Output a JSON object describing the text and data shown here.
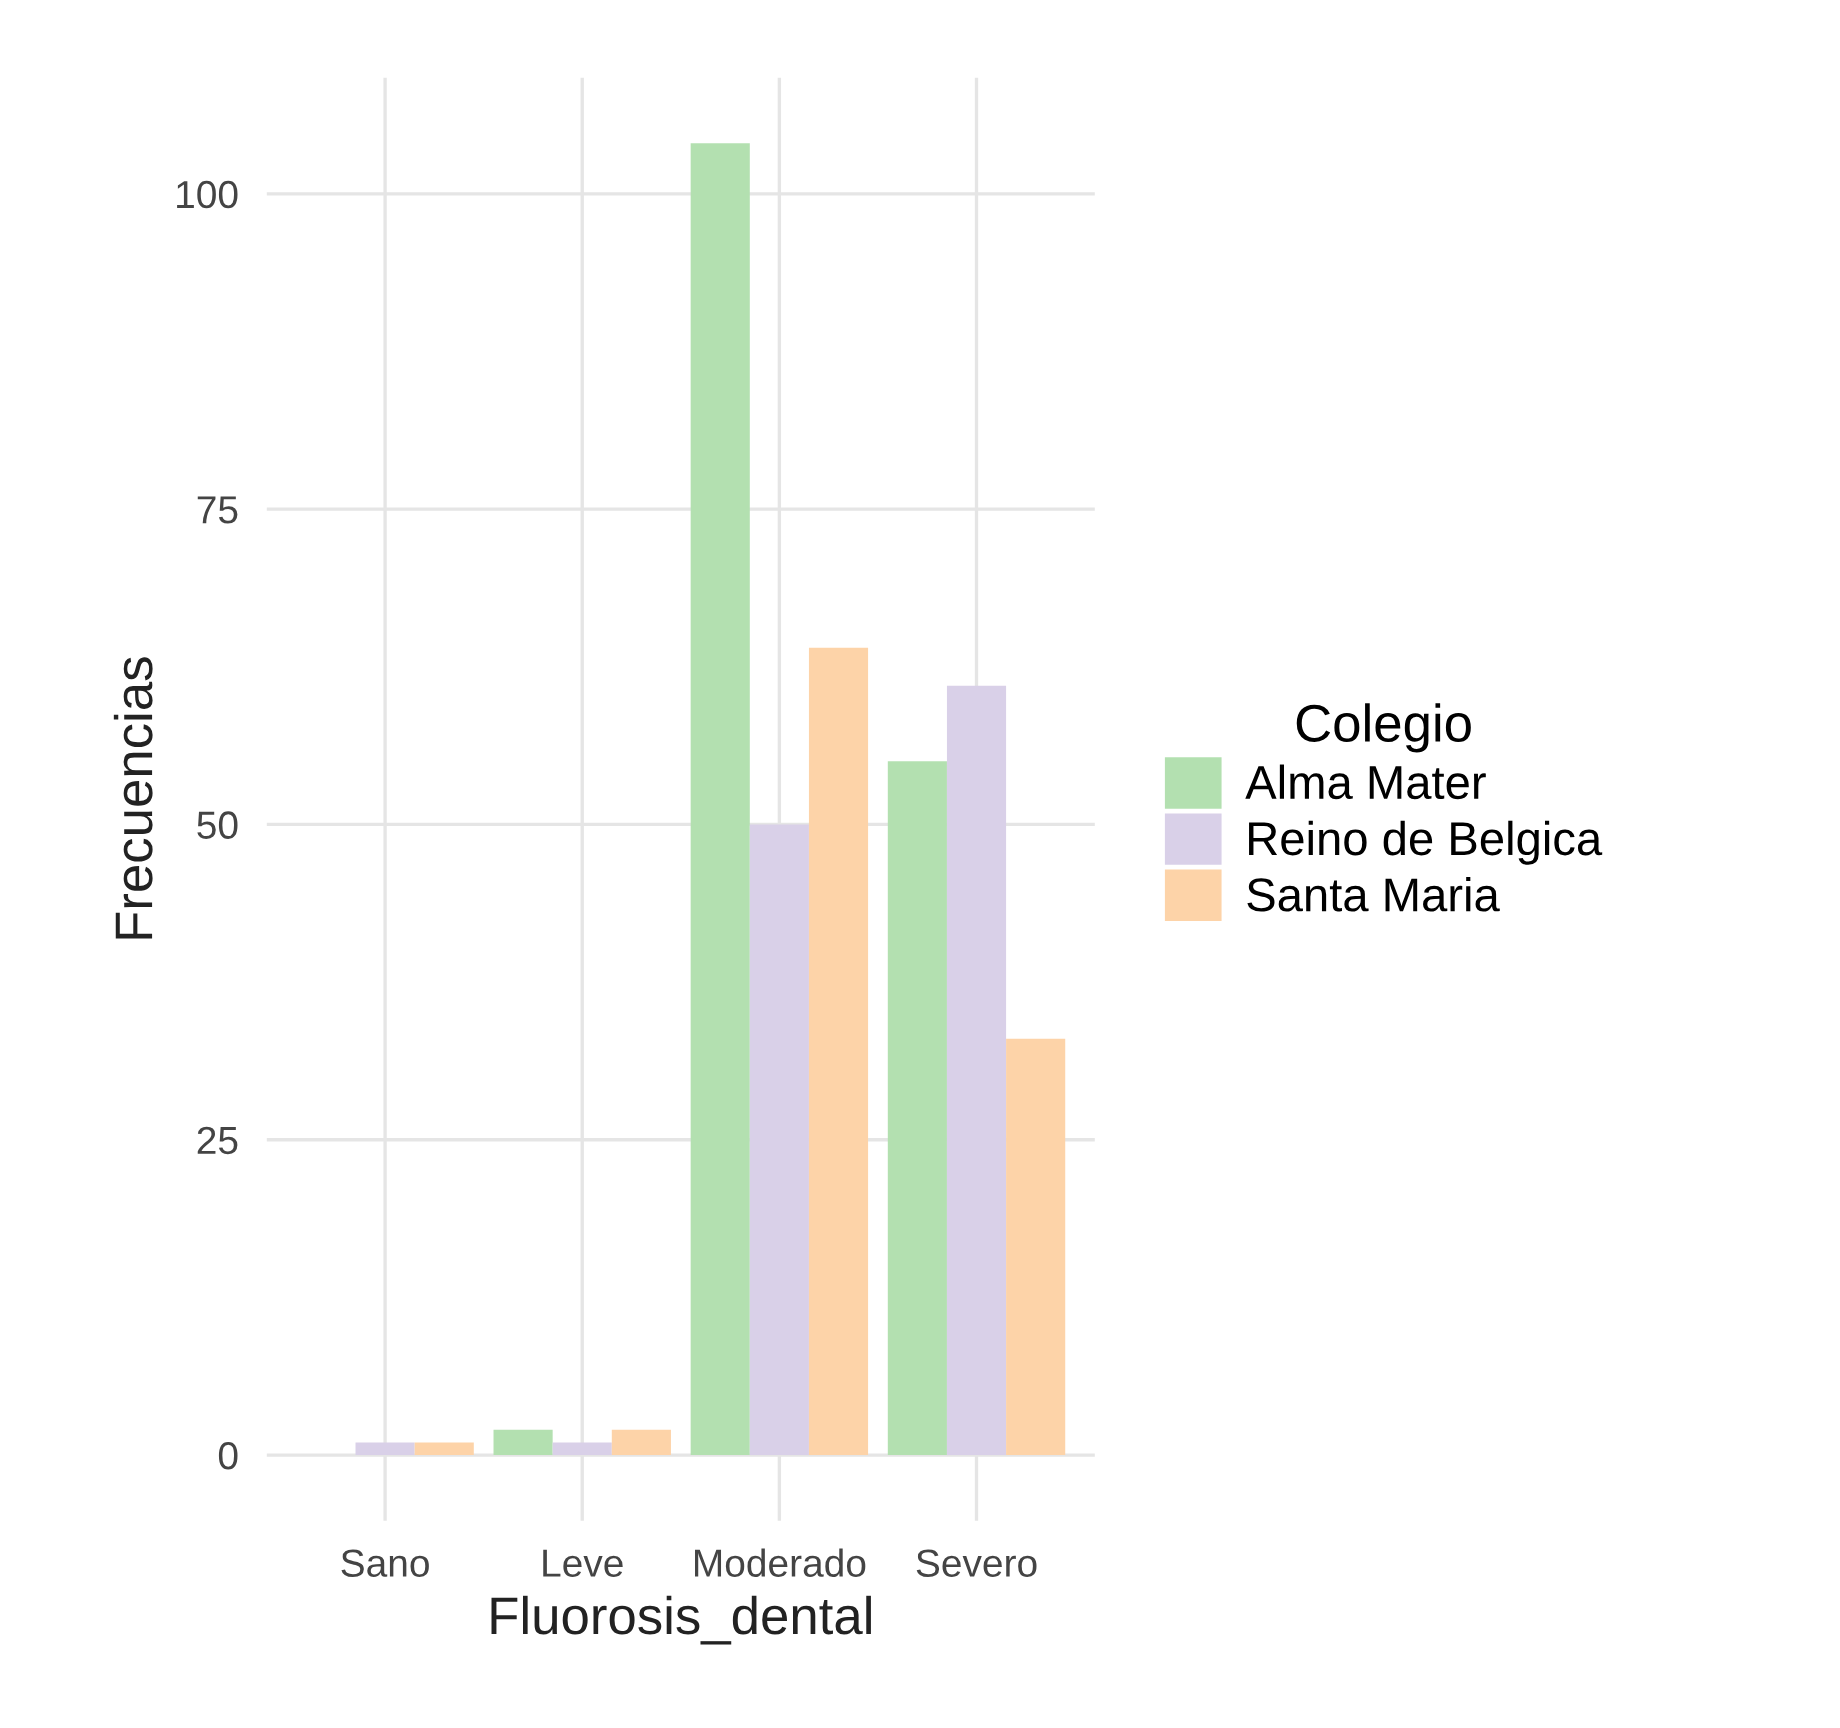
{
  "chart_data": {
    "type": "bar",
    "xlabel": "Fluorosis_dental",
    "ylabel": "Frecuencias",
    "legend_title": "Colegio",
    "categories": [
      "Sano",
      "Leve",
      "Moderado",
      "Severo"
    ],
    "series": [
      {
        "name": "Alma Mater",
        "color": "#b3e0b0",
        "values": [
          0,
          2,
          104,
          55
        ]
      },
      {
        "name": "Reino de Belgica",
        "color": "#d9d0e8",
        "values": [
          1,
          1,
          50,
          61
        ]
      },
      {
        "name": "Santa Maria",
        "color": "#fdd3a8",
        "values": [
          1,
          2,
          64,
          33
        ]
      }
    ],
    "ylim": [
      -5.2,
      109.2
    ],
    "yticks": [
      0,
      25,
      50,
      75,
      100
    ],
    "grid": true,
    "legend": "right"
  }
}
